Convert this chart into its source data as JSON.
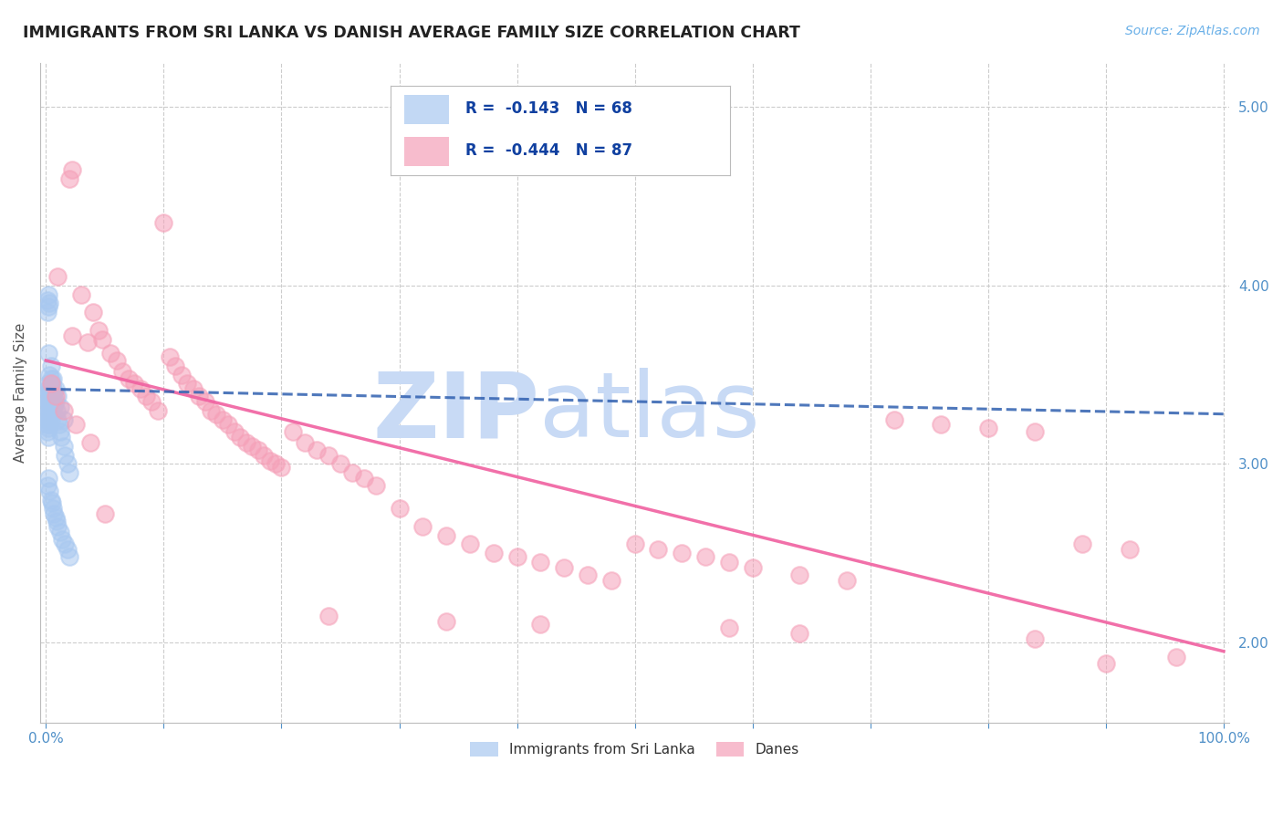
{
  "title": "IMMIGRANTS FROM SRI LANKA VS DANISH AVERAGE FAMILY SIZE CORRELATION CHART",
  "source": "Source: ZipAtlas.com",
  "ylabel": "Average Family Size",
  "blue_color": "#a8c8f0",
  "pink_color": "#f5a0b8",
  "blue_line_color": "#3060b0",
  "pink_line_color": "#f060a0",
  "watermark_zip": "ZIP",
  "watermark_atlas": "atlas",
  "watermark_color": "#c8daf5",
  "yticks": [
    2.0,
    3.0,
    4.0,
    5.0
  ],
  "ylim": [
    1.55,
    5.25
  ],
  "xlim": [
    -0.005,
    1.005
  ],
  "blue_reg": [
    3.42,
    -0.143
  ],
  "pink_reg": [
    3.58,
    -1.6
  ],
  "blue_scatter_x": [
    0.001,
    0.001,
    0.001,
    0.001,
    0.001,
    0.001,
    0.001,
    0.001,
    0.002,
    0.002,
    0.002,
    0.002,
    0.002,
    0.002,
    0.002,
    0.003,
    0.003,
    0.003,
    0.003,
    0.003,
    0.004,
    0.004,
    0.004,
    0.004,
    0.005,
    0.005,
    0.005,
    0.006,
    0.006,
    0.007,
    0.007,
    0.008,
    0.009,
    0.01,
    0.011,
    0.012,
    0.013,
    0.015,
    0.016,
    0.018,
    0.02,
    0.001,
    0.001,
    0.002,
    0.002,
    0.003,
    0.001,
    0.002,
    0.003,
    0.004,
    0.005,
    0.006,
    0.007,
    0.008,
    0.009,
    0.01,
    0.012,
    0.014,
    0.016,
    0.018,
    0.02,
    0.002,
    0.004,
    0.006,
    0.008,
    0.01,
    0.012,
    0.015
  ],
  "blue_scatter_y": [
    3.42,
    3.38,
    3.35,
    3.32,
    3.28,
    3.25,
    3.22,
    3.18,
    3.45,
    3.4,
    3.35,
    3.3,
    3.25,
    3.2,
    3.15,
    3.5,
    3.42,
    3.35,
    3.28,
    3.22,
    3.48,
    3.4,
    3.32,
    3.25,
    3.45,
    3.38,
    3.3,
    3.42,
    3.35,
    3.4,
    3.32,
    3.35,
    3.3,
    3.25,
    3.22,
    3.18,
    3.15,
    3.1,
    3.05,
    3.0,
    2.95,
    3.92,
    3.85,
    3.95,
    3.88,
    3.9,
    2.88,
    2.92,
    2.85,
    2.8,
    2.78,
    2.75,
    2.72,
    2.7,
    2.68,
    2.65,
    2.62,
    2.58,
    2.55,
    2.52,
    2.48,
    3.62,
    3.55,
    3.48,
    3.42,
    3.38,
    3.32,
    3.25
  ],
  "pink_scatter_x": [
    0.01,
    0.02,
    0.022,
    0.03,
    0.04,
    0.045,
    0.048,
    0.055,
    0.06,
    0.065,
    0.07,
    0.075,
    0.08,
    0.085,
    0.09,
    0.095,
    0.1,
    0.11,
    0.115,
    0.12,
    0.125,
    0.13,
    0.135,
    0.14,
    0.145,
    0.15,
    0.155,
    0.16,
    0.165,
    0.17,
    0.175,
    0.18,
    0.185,
    0.19,
    0.195,
    0.2,
    0.21,
    0.22,
    0.23,
    0.24,
    0.25,
    0.26,
    0.27,
    0.28,
    0.3,
    0.32,
    0.34,
    0.36,
    0.38,
    0.4,
    0.42,
    0.44,
    0.46,
    0.48,
    0.5,
    0.52,
    0.54,
    0.56,
    0.58,
    0.6,
    0.64,
    0.68,
    0.72,
    0.76,
    0.8,
    0.84,
    0.88,
    0.92,
    0.96,
    0.022,
    0.035,
    0.05,
    0.105,
    0.24,
    0.34,
    0.42,
    0.58,
    0.64,
    0.84,
    0.9,
    0.004,
    0.008,
    0.015,
    0.025,
    0.038
  ],
  "pink_scatter_y": [
    4.05,
    4.6,
    4.65,
    3.95,
    3.85,
    3.75,
    3.7,
    3.62,
    3.58,
    3.52,
    3.48,
    3.45,
    3.42,
    3.38,
    3.35,
    3.3,
    4.35,
    3.55,
    3.5,
    3.45,
    3.42,
    3.38,
    3.35,
    3.3,
    3.28,
    3.25,
    3.22,
    3.18,
    3.15,
    3.12,
    3.1,
    3.08,
    3.05,
    3.02,
    3.0,
    2.98,
    3.18,
    3.12,
    3.08,
    3.05,
    3.0,
    2.95,
    2.92,
    2.88,
    2.75,
    2.65,
    2.6,
    2.55,
    2.5,
    2.48,
    2.45,
    2.42,
    2.38,
    2.35,
    2.55,
    2.52,
    2.5,
    2.48,
    2.45,
    2.42,
    2.38,
    2.35,
    3.25,
    3.22,
    3.2,
    3.18,
    2.55,
    2.52,
    1.92,
    3.72,
    3.68,
    2.72,
    3.6,
    2.15,
    2.12,
    2.1,
    2.08,
    2.05,
    2.02,
    1.88,
    3.45,
    3.38,
    3.3,
    3.22,
    3.12
  ]
}
